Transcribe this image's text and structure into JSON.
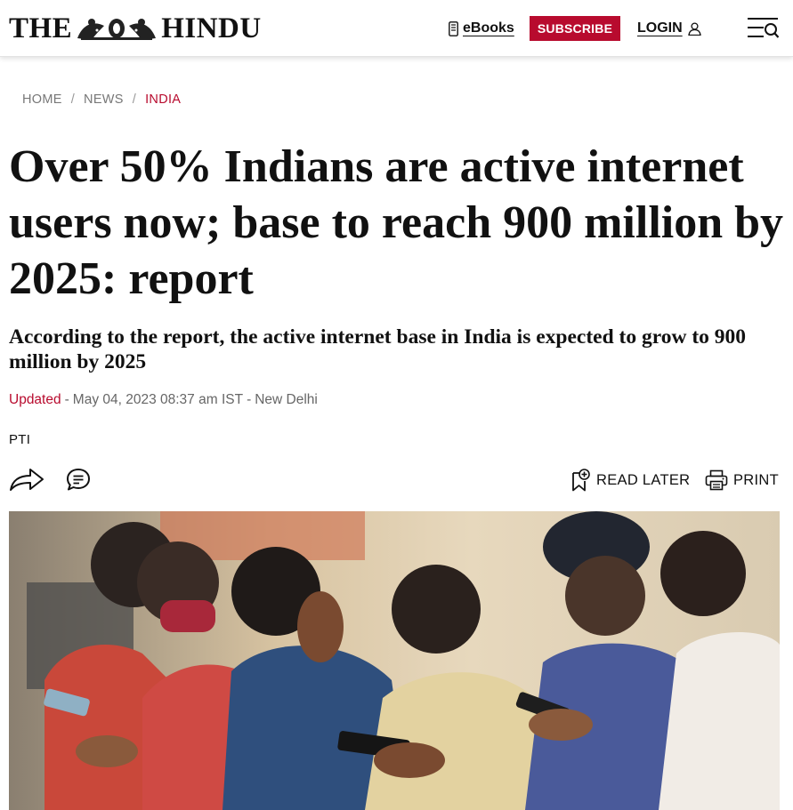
{
  "header": {
    "logo_left": "THE",
    "logo_right": "HINDU",
    "ebooks_label": "eBooks",
    "subscribe_label": "SUBSCRIBE",
    "login_label": "LOGIN"
  },
  "breadcrumb": [
    "HOME",
    "NEWS",
    "INDIA"
  ],
  "article": {
    "title": "Over 50% Indians are active internet users now; base to reach 900 million by 2025: report",
    "subtitle": "According to the report, the active internet base in India is expected to grow to 900 million by 2025",
    "updated_label": "Updated",
    "timestamp": "May 04, 2023 08:37 am IST",
    "location": "New Delhi",
    "author": "PTI"
  },
  "actions": {
    "read_later_label": "READ LATER",
    "print_label": "PRINT"
  },
  "icons": {
    "ebooks": "ebook-icon",
    "login": "user-icon",
    "menu": "menu-search-icon",
    "share": "share-icon",
    "comment": "comment-icon",
    "read_later": "bookmark-add-icon",
    "print": "printer-icon"
  },
  "colors": {
    "brand_red": "#b80b2e",
    "text": "#111111",
    "muted": "#666666"
  }
}
